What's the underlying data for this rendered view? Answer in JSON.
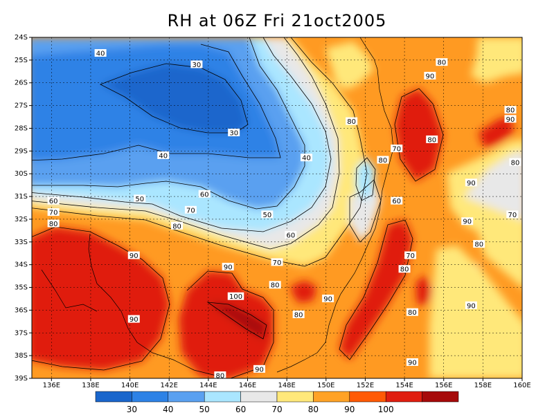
{
  "chart_data": {
    "type": "heatmap",
    "title": "RH at 06Z Fri 21oct2005",
    "xlabel": "",
    "ylabel": "",
    "x_ticks": [
      "136E",
      "138E",
      "140E",
      "142E",
      "144E",
      "146E",
      "148E",
      "150E",
      "152E",
      "154E",
      "156E",
      "158E",
      "160E"
    ],
    "y_ticks": [
      "24S",
      "25S",
      "26S",
      "27S",
      "28S",
      "29S",
      "30S",
      "31S",
      "32S",
      "33S",
      "34S",
      "35S",
      "36S",
      "37S",
      "38S",
      "39S"
    ],
    "xlim": [
      135,
      160
    ],
    "ylim": [
      -39,
      -24
    ],
    "grid": true,
    "colorbar": {
      "levels": [
        20,
        30,
        40,
        50,
        60,
        70,
        80,
        90,
        100,
        110
      ],
      "labels": [
        "30",
        "40",
        "50",
        "60",
        "70",
        "80",
        "90",
        "100"
      ],
      "colors": [
        "#1a66cc",
        "#2d82e6",
        "#5aa0f0",
        "#aae6ff",
        "#e8e8e8",
        "#ffe87a",
        "#ffa226",
        "#ff5a05",
        "#e01e10",
        "#a60a0a"
      ]
    },
    "contour_labels": [
      {
        "text": "40",
        "x": 138.5,
        "y": -24.7
      },
      {
        "text": "30",
        "x": 143.4,
        "y": -25.2
      },
      {
        "text": "30",
        "x": 145.3,
        "y": -28.2
      },
      {
        "text": "40",
        "x": 141.7,
        "y": -29.2
      },
      {
        "text": "40",
        "x": 149.0,
        "y": -29.3
      },
      {
        "text": "50",
        "x": 140.5,
        "y": -31.1
      },
      {
        "text": "60",
        "x": 143.8,
        "y": -30.9
      },
      {
        "text": "70",
        "x": 143.1,
        "y": -31.6
      },
      {
        "text": "60",
        "x": 136.1,
        "y": -31.2
      },
      {
        "text": "70",
        "x": 136.1,
        "y": -31.7
      },
      {
        "text": "80",
        "x": 136.1,
        "y": -32.2
      },
      {
        "text": "80",
        "x": 142.4,
        "y": -32.3
      },
      {
        "text": "50",
        "x": 147.0,
        "y": -31.8
      },
      {
        "text": "60",
        "x": 148.2,
        "y": -32.7
      },
      {
        "text": "70",
        "x": 147.5,
        "y": -33.9
      },
      {
        "text": "90",
        "x": 140.2,
        "y": -33.6
      },
      {
        "text": "90",
        "x": 145.0,
        "y": -34.1
      },
      {
        "text": "80",
        "x": 147.4,
        "y": -34.9
      },
      {
        "text": "100",
        "x": 145.4,
        "y": -35.4
      },
      {
        "text": "80",
        "x": 148.6,
        "y": -36.2
      },
      {
        "text": "90",
        "x": 140.2,
        "y": -36.4
      },
      {
        "text": "90",
        "x": 150.1,
        "y": -35.5
      },
      {
        "text": "90",
        "x": 146.6,
        "y": -38.6
      },
      {
        "text": "80",
        "x": 144.6,
        "y": -38.9
      },
      {
        "text": "90",
        "x": 155.3,
        "y": -25.7
      },
      {
        "text": "80",
        "x": 155.9,
        "y": -25.1
      },
      {
        "text": "80",
        "x": 159.4,
        "y": -27.2
      },
      {
        "text": "90",
        "x": 159.4,
        "y": -27.6
      },
      {
        "text": "80",
        "x": 151.3,
        "y": -27.7
      },
      {
        "text": "80",
        "x": 155.4,
        "y": -28.5
      },
      {
        "text": "70",
        "x": 153.6,
        "y": -28.9
      },
      {
        "text": "80",
        "x": 152.9,
        "y": -29.4
      },
      {
        "text": "90",
        "x": 157.4,
        "y": -30.4
      },
      {
        "text": "80",
        "x": 160.0,
        "y": -29.5
      },
      {
        "text": "60",
        "x": 153.6,
        "y": -31.2
      },
      {
        "text": "90",
        "x": 157.2,
        "y": -32.1
      },
      {
        "text": "80",
        "x": 157.8,
        "y": -33.1
      },
      {
        "text": "70",
        "x": 159.5,
        "y": -31.8
      },
      {
        "text": "70",
        "x": 154.3,
        "y": -33.6
      },
      {
        "text": "80",
        "x": 154.0,
        "y": -34.2
      },
      {
        "text": "80",
        "x": 154.4,
        "y": -36.1
      },
      {
        "text": "90",
        "x": 157.4,
        "y": -35.8
      },
      {
        "text": "90",
        "x": 154.4,
        "y": -38.3
      }
    ]
  }
}
